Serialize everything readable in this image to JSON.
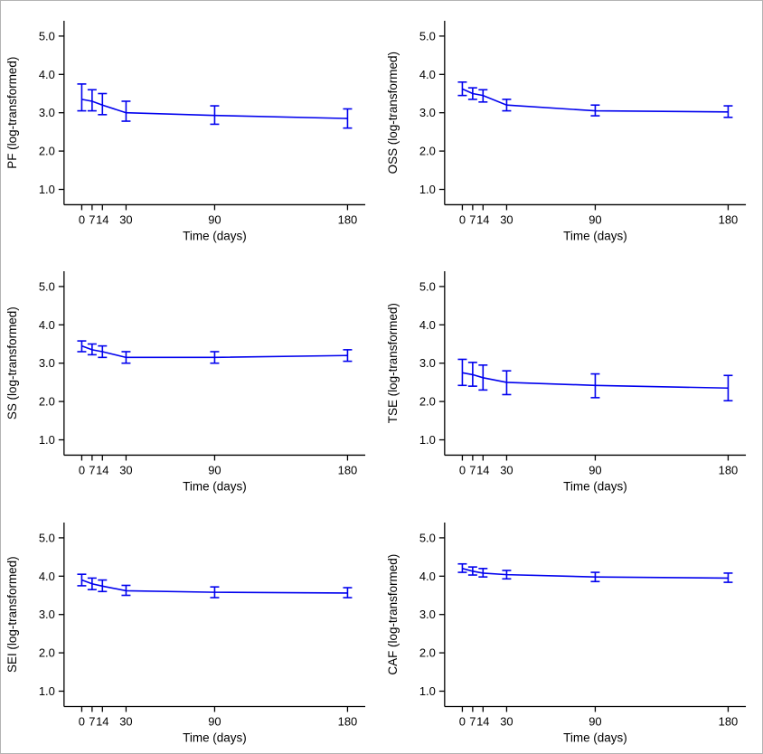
{
  "figure": {
    "background": "#ffffff",
    "border_color": "#b3b3b3",
    "line_color": "#0000ee",
    "axis_color": "#000000",
    "xlabel": "Time (days)",
    "x_ticks": [
      0,
      7,
      14,
      30,
      90,
      180
    ],
    "x_tick_labels": [
      "0",
      "7",
      "14",
      "30",
      "90",
      "180"
    ],
    "y_ticks": [
      1,
      2,
      3,
      4,
      5
    ],
    "y_tick_labels": [
      "1.0",
      "2.0",
      "3.0",
      "4.0",
      "5.0"
    ],
    "xlim": [
      -12,
      192
    ],
    "ylim": [
      0.6,
      5.4
    ]
  },
  "chart_data": [
    {
      "id": "pf",
      "type": "line",
      "ylabel": "PF (log-transformed)",
      "xlabel": "Time (days)",
      "x": [
        0,
        7,
        14,
        30,
        90,
        180
      ],
      "y": [
        3.35,
        3.3,
        3.2,
        3.0,
        2.93,
        2.85
      ],
      "y_low": [
        3.05,
        3.05,
        2.95,
        2.78,
        2.7,
        2.6
      ],
      "y_high": [
        3.75,
        3.6,
        3.5,
        3.3,
        3.18,
        3.1
      ]
    },
    {
      "id": "oss",
      "type": "line",
      "ylabel": "OSS (log-transformed)",
      "xlabel": "Time (days)",
      "x": [
        0,
        7,
        14,
        30,
        90,
        180
      ],
      "y": [
        3.62,
        3.5,
        3.45,
        3.2,
        3.05,
        3.02
      ],
      "y_low": [
        3.45,
        3.35,
        3.28,
        3.05,
        2.92,
        2.88
      ],
      "y_high": [
        3.8,
        3.65,
        3.6,
        3.35,
        3.2,
        3.18
      ]
    },
    {
      "id": "ss",
      "type": "line",
      "ylabel": "SS (log-transformed)",
      "xlabel": "Time (days)",
      "x": [
        0,
        7,
        14,
        30,
        90,
        180
      ],
      "y": [
        3.45,
        3.35,
        3.3,
        3.15,
        3.15,
        3.2
      ],
      "y_low": [
        3.3,
        3.22,
        3.15,
        3.0,
        3.0,
        3.05
      ],
      "y_high": [
        3.58,
        3.5,
        3.45,
        3.3,
        3.3,
        3.35
      ]
    },
    {
      "id": "tse",
      "type": "line",
      "ylabel": "TSE (log-transformed)",
      "xlabel": "Time (days)",
      "x": [
        0,
        7,
        14,
        30,
        90,
        180
      ],
      "y": [
        2.75,
        2.7,
        2.62,
        2.5,
        2.42,
        2.35
      ],
      "y_low": [
        2.42,
        2.4,
        2.3,
        2.18,
        2.1,
        2.02
      ],
      "y_high": [
        3.1,
        3.02,
        2.95,
        2.8,
        2.72,
        2.68
      ]
    },
    {
      "id": "sei",
      "type": "line",
      "ylabel": "SEI (log-transformed)",
      "xlabel": "Time (days)",
      "x": [
        0,
        7,
        14,
        30,
        90,
        180
      ],
      "y": [
        3.9,
        3.8,
        3.74,
        3.62,
        3.58,
        3.56
      ],
      "y_low": [
        3.75,
        3.65,
        3.6,
        3.5,
        3.44,
        3.44
      ],
      "y_high": [
        4.05,
        3.95,
        3.9,
        3.76,
        3.72,
        3.7
      ]
    },
    {
      "id": "caf",
      "type": "line",
      "ylabel": "CAF (log-transformed)",
      "xlabel": "Time (days)",
      "x": [
        0,
        7,
        14,
        30,
        90,
        180
      ],
      "y": [
        4.2,
        4.13,
        4.08,
        4.04,
        3.98,
        3.95
      ],
      "y_low": [
        4.1,
        4.03,
        3.98,
        3.93,
        3.86,
        3.84
      ],
      "y_high": [
        4.32,
        4.24,
        4.2,
        4.15,
        4.1,
        4.08
      ]
    }
  ]
}
